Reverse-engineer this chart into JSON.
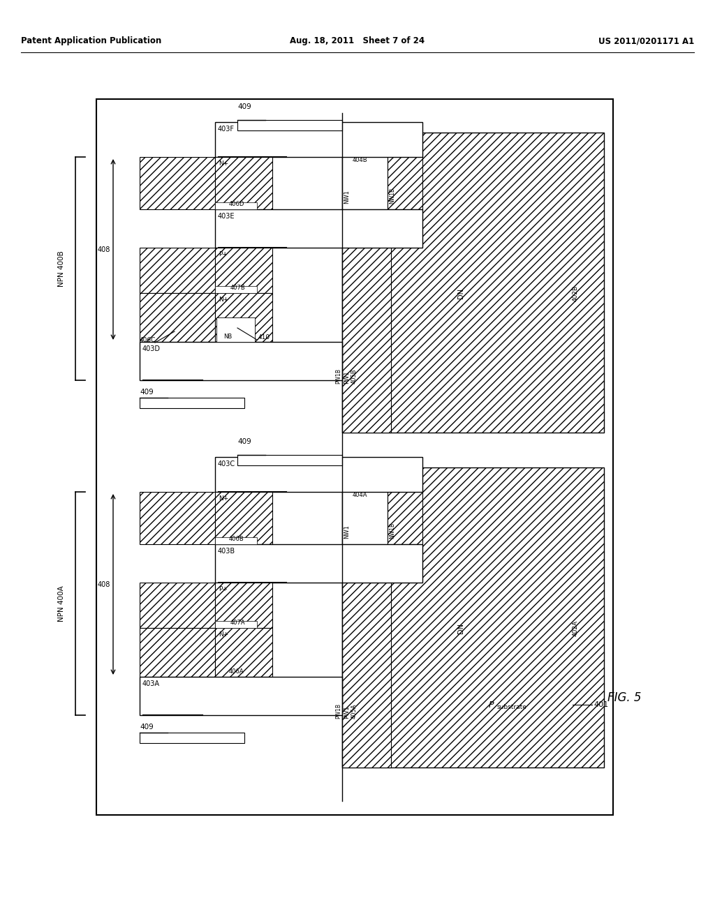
{
  "header_left": "Patent Application Publication",
  "header_mid": "Aug. 18, 2011   Sheet 7 of 24",
  "header_right": "US 2011/0201171 A1",
  "fig_label": "FIG. 5",
  "bg": "#ffffff"
}
